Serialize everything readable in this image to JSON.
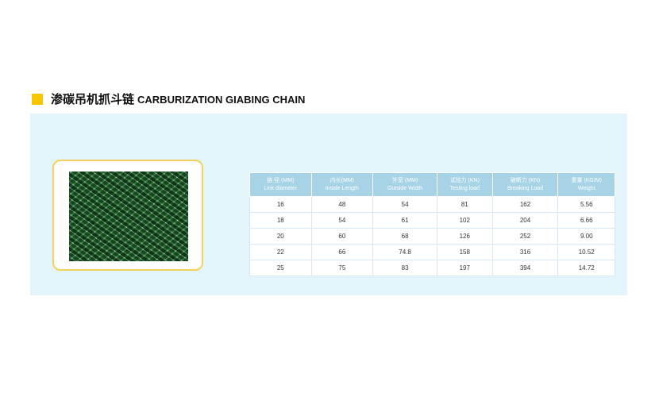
{
  "title": {
    "cn": "渗碳吊机抓斗链",
    "en": "CARBURIZATION GIABING CHAIN"
  },
  "colors": {
    "accent": "#f7c600",
    "panel": "#e4f4fb",
    "header": "#a6d3e6"
  },
  "image": {
    "alt": "green chain photo"
  },
  "table": {
    "headers": [
      {
        "cn": "链 径 (MM)",
        "en": "Link diameter"
      },
      {
        "cn": "内长(MM)",
        "en": "Inside Length"
      },
      {
        "cn": "外宽 (MM)",
        "en": "Outside Width"
      },
      {
        "cn": "试验力 (KN)",
        "en": "Testing load"
      },
      {
        "cn": "破断力 (KN)",
        "en": "Breaking Load"
      },
      {
        "cn": "重量 (KG/M)",
        "en": "Weight"
      }
    ],
    "rows": [
      [
        "16",
        "48",
        "54",
        "81",
        "162",
        "5.56"
      ],
      [
        "18",
        "54",
        "61",
        "102",
        "204",
        "6.66"
      ],
      [
        "20",
        "60",
        "68",
        "126",
        "252",
        "9.00"
      ],
      [
        "22",
        "66",
        "74.8",
        "158",
        "316",
        "10.52"
      ],
      [
        "25",
        "75",
        "83",
        "197",
        "394",
        "14.72"
      ]
    ]
  }
}
